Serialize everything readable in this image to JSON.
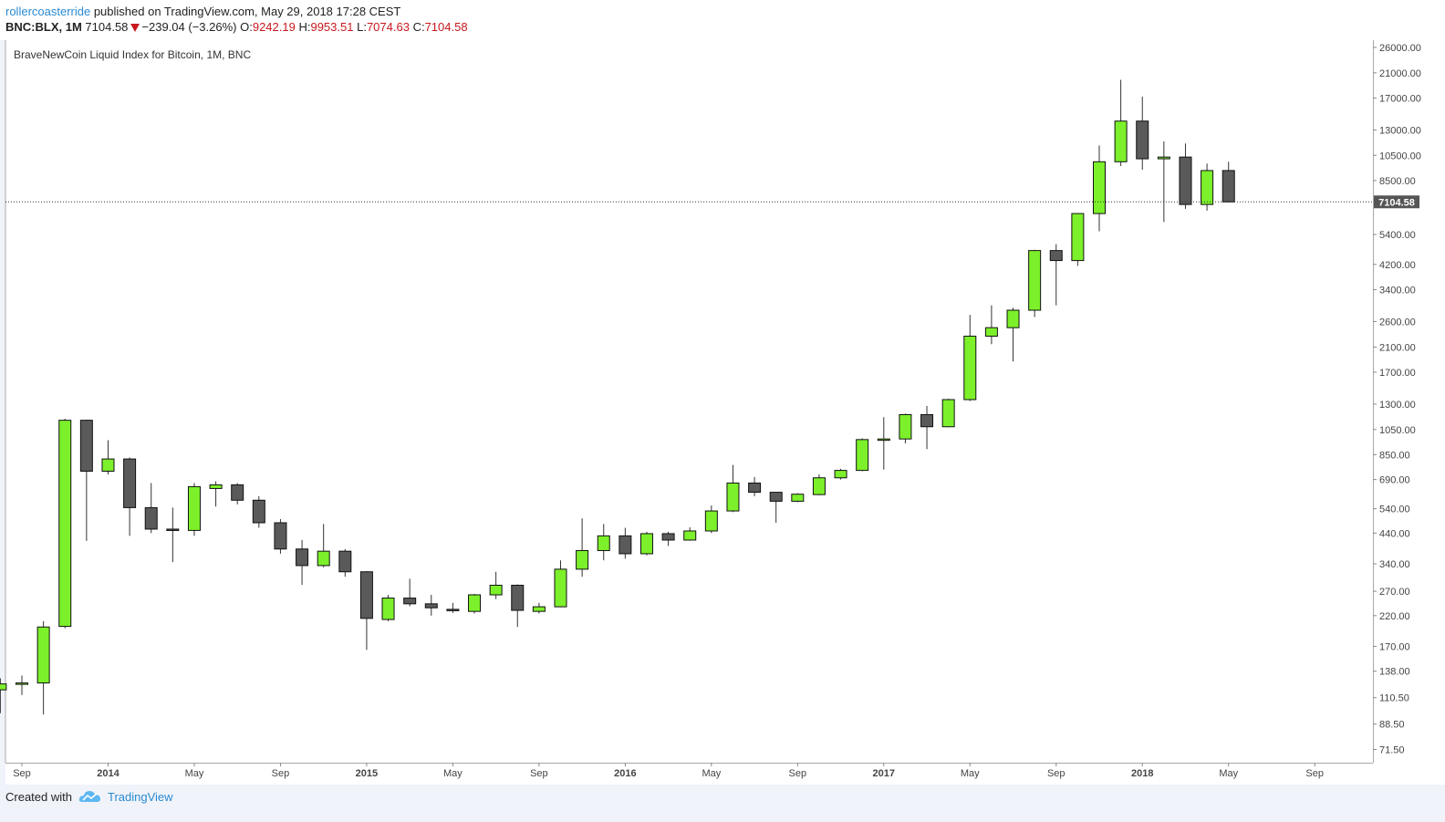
{
  "header": {
    "author": "rollercoasterride",
    "published_text": " published on TradingView.com, May 29, 2018 17:28 CEST",
    "symbol": "BNC:BLX, 1M",
    "last": "7104.58",
    "change": "−239.04 (−3.26%)",
    "o_label": "O:",
    "o_value": "9242.19",
    "h_label": "H:",
    "h_value": "9953.51",
    "l_label": "L:",
    "l_value": "7074.63",
    "c_label": "C:",
    "c_value": "7104.58"
  },
  "footer": {
    "created_with": "Created with",
    "brand": "TradingView"
  },
  "colors": {
    "up": "#7cf02a",
    "down": "#5a5a5a",
    "wick": "#333333",
    "accent": "#2a8ad1",
    "red": "#c8181e"
  },
  "icons": {
    "logo": "tradingview-cloud-icon",
    "change_direction": "down-triangle-icon"
  },
  "chart_data": {
    "type": "candlestick",
    "title": "BraveNewCoin Liquid Index for Bitcoin, 1M, BNC",
    "y_scale": "log",
    "ylim": [
      67,
      27000
    ],
    "last_price_label": "7104.58",
    "last_price": 7104.58,
    "y_ticks": [
      "26000.00",
      "21000.00",
      "17000.00",
      "13000.00",
      "10500.00",
      "8500.00",
      "5400.00",
      "4200.00",
      "3400.00",
      "2600.00",
      "2100.00",
      "1700.00",
      "1300.00",
      "1050.00",
      "850.00",
      "690.00",
      "540.00",
      "440.00",
      "340.00",
      "270.00",
      "220.00",
      "170.00",
      "138.00",
      "110.50",
      "88.50",
      "71.50"
    ],
    "x_ticks": [
      {
        "label": "Sep",
        "month": "2013-09",
        "bold": false
      },
      {
        "label": "2014",
        "month": "2014-01",
        "bold": true
      },
      {
        "label": "May",
        "month": "2014-05",
        "bold": false
      },
      {
        "label": "Sep",
        "month": "2014-09",
        "bold": false
      },
      {
        "label": "2015",
        "month": "2015-01",
        "bold": true
      },
      {
        "label": "May",
        "month": "2015-05",
        "bold": false
      },
      {
        "label": "Sep",
        "month": "2015-09",
        "bold": false
      },
      {
        "label": "2016",
        "month": "2016-01",
        "bold": true
      },
      {
        "label": "May",
        "month": "2016-05",
        "bold": false
      },
      {
        "label": "Sep",
        "month": "2016-09",
        "bold": false
      },
      {
        "label": "2017",
        "month": "2017-01",
        "bold": true
      },
      {
        "label": "May",
        "month": "2017-05",
        "bold": false
      },
      {
        "label": "Sep",
        "month": "2017-09",
        "bold": false
      },
      {
        "label": "2018",
        "month": "2018-01",
        "bold": true
      },
      {
        "label": "May",
        "month": "2018-05",
        "bold": false
      },
      {
        "label": "Sep",
        "month": "2018-09",
        "bold": false
      }
    ],
    "candles": [
      {
        "month": "2013-08",
        "o": 118,
        "h": 130,
        "l": 97,
        "c": 124
      },
      {
        "month": "2013-09",
        "o": 124,
        "h": 133,
        "l": 113,
        "c": 125
      },
      {
        "month": "2013-10",
        "o": 125,
        "h": 210,
        "l": 96,
        "c": 200
      },
      {
        "month": "2013-11",
        "o": 201,
        "h": 1150,
        "l": 198,
        "c": 1135
      },
      {
        "month": "2013-12",
        "o": 1135,
        "h": 1140,
        "l": 412,
        "c": 740
      },
      {
        "month": "2014-01",
        "o": 740,
        "h": 960,
        "l": 720,
        "c": 820
      },
      {
        "month": "2014-02",
        "o": 820,
        "h": 830,
        "l": 430,
        "c": 545
      },
      {
        "month": "2014-03",
        "o": 545,
        "h": 670,
        "l": 440,
        "c": 455
      },
      {
        "month": "2014-04",
        "o": 455,
        "h": 545,
        "l": 345,
        "c": 450
      },
      {
        "month": "2014-05",
        "o": 450,
        "h": 670,
        "l": 430,
        "c": 650
      },
      {
        "month": "2014-06",
        "o": 640,
        "h": 680,
        "l": 550,
        "c": 660
      },
      {
        "month": "2014-07",
        "o": 660,
        "h": 670,
        "l": 560,
        "c": 580
      },
      {
        "month": "2014-08",
        "o": 580,
        "h": 600,
        "l": 460,
        "c": 480
      },
      {
        "month": "2014-09",
        "o": 480,
        "h": 495,
        "l": 370,
        "c": 385
      },
      {
        "month": "2014-10",
        "o": 385,
        "h": 415,
        "l": 285,
        "c": 335
      },
      {
        "month": "2014-11",
        "o": 335,
        "h": 475,
        "l": 330,
        "c": 378
      },
      {
        "month": "2014-12",
        "o": 378,
        "h": 385,
        "l": 305,
        "c": 318
      },
      {
        "month": "2015-01",
        "o": 318,
        "h": 320,
        "l": 165,
        "c": 215
      },
      {
        "month": "2015-02",
        "o": 213,
        "h": 262,
        "l": 210,
        "c": 255
      },
      {
        "month": "2015-03",
        "o": 255,
        "h": 300,
        "l": 238,
        "c": 243
      },
      {
        "month": "2015-04",
        "o": 243,
        "h": 262,
        "l": 220,
        "c": 235
      },
      {
        "month": "2015-05",
        "o": 232,
        "h": 245,
        "l": 225,
        "c": 230
      },
      {
        "month": "2015-06",
        "o": 228,
        "h": 264,
        "l": 224,
        "c": 262
      },
      {
        "month": "2015-07",
        "o": 262,
        "h": 318,
        "l": 253,
        "c": 284
      },
      {
        "month": "2015-08",
        "o": 284,
        "h": 286,
        "l": 200,
        "c": 230
      },
      {
        "month": "2015-09",
        "o": 228,
        "h": 245,
        "l": 224,
        "c": 237
      },
      {
        "month": "2015-10",
        "o": 237,
        "h": 350,
        "l": 236,
        "c": 325
      },
      {
        "month": "2015-11",
        "o": 325,
        "h": 498,
        "l": 305,
        "c": 380
      },
      {
        "month": "2015-12",
        "o": 380,
        "h": 475,
        "l": 350,
        "c": 430
      },
      {
        "month": "2016-01",
        "o": 430,
        "h": 460,
        "l": 355,
        "c": 370
      },
      {
        "month": "2016-02",
        "o": 370,
        "h": 445,
        "l": 365,
        "c": 438
      },
      {
        "month": "2016-03",
        "o": 438,
        "h": 445,
        "l": 395,
        "c": 415
      },
      {
        "month": "2016-04",
        "o": 415,
        "h": 462,
        "l": 413,
        "c": 448
      },
      {
        "month": "2016-05",
        "o": 448,
        "h": 555,
        "l": 440,
        "c": 530
      },
      {
        "month": "2016-06",
        "o": 530,
        "h": 780,
        "l": 525,
        "c": 670
      },
      {
        "month": "2016-07",
        "o": 670,
        "h": 705,
        "l": 600,
        "c": 620
      },
      {
        "month": "2016-08",
        "o": 620,
        "h": 620,
        "l": 480,
        "c": 575
      },
      {
        "month": "2016-09",
        "o": 575,
        "h": 615,
        "l": 570,
        "c": 610
      },
      {
        "month": "2016-10",
        "o": 608,
        "h": 720,
        "l": 605,
        "c": 700
      },
      {
        "month": "2016-11",
        "o": 700,
        "h": 755,
        "l": 690,
        "c": 745
      },
      {
        "month": "2016-12",
        "o": 745,
        "h": 975,
        "l": 740,
        "c": 965
      },
      {
        "month": "2017-01",
        "o": 965,
        "h": 1165,
        "l": 750,
        "c": 970
      },
      {
        "month": "2017-02",
        "o": 970,
        "h": 1200,
        "l": 935,
        "c": 1190
      },
      {
        "month": "2017-03",
        "o": 1190,
        "h": 1280,
        "l": 890,
        "c": 1075
      },
      {
        "month": "2017-04",
        "o": 1075,
        "h": 1360,
        "l": 1070,
        "c": 1350
      },
      {
        "month": "2017-05",
        "o": 1350,
        "h": 2750,
        "l": 1335,
        "c": 2300
      },
      {
        "month": "2017-06",
        "o": 2300,
        "h": 2980,
        "l": 2150,
        "c": 2470
      },
      {
        "month": "2017-07",
        "o": 2470,
        "h": 2920,
        "l": 1860,
        "c": 2860
      },
      {
        "month": "2017-08",
        "o": 2860,
        "h": 4750,
        "l": 2700,
        "c": 4720
      },
      {
        "month": "2017-09",
        "o": 4720,
        "h": 4980,
        "l": 2980,
        "c": 4340
      },
      {
        "month": "2017-10",
        "o": 4340,
        "h": 6450,
        "l": 4150,
        "c": 6440
      },
      {
        "month": "2017-11",
        "o": 6440,
        "h": 11400,
        "l": 5550,
        "c": 9950
      },
      {
        "month": "2017-12",
        "o": 9950,
        "h": 19800,
        "l": 9600,
        "c": 14000
      },
      {
        "month": "2018-01",
        "o": 14000,
        "h": 17200,
        "l": 9300,
        "c": 10200
      },
      {
        "month": "2018-02",
        "o": 10200,
        "h": 11800,
        "l": 6000,
        "c": 10350
      },
      {
        "month": "2018-03",
        "o": 10350,
        "h": 11600,
        "l": 6700,
        "c": 6950
      },
      {
        "month": "2018-04",
        "o": 6950,
        "h": 9800,
        "l": 6600,
        "c": 9240
      },
      {
        "month": "2018-05",
        "o": 9242.19,
        "h": 9953.51,
        "l": 7074.63,
        "c": 7104.58
      }
    ]
  }
}
